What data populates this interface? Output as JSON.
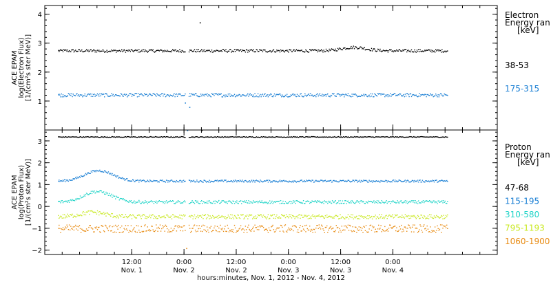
{
  "chart_data": [
    {
      "type": "scatter",
      "panel": "electron",
      "ylabel_lines": [
        "ACE EPAM",
        "log(Electron Flux)",
        "[1/(cm²s ster MeV)]"
      ],
      "ylim": [
        0,
        4.3
      ],
      "yticks": [
        1,
        2,
        3,
        4
      ],
      "legend_title_lines": [
        "Electron",
        "Energy ran",
        "[keV]"
      ],
      "series": [
        {
          "name": "38-53",
          "color": "#000000",
          "base": 2.75,
          "bumps": [
            {
              "x": 51,
              "h": 0.12
            }
          ],
          "spread": 0.05
        },
        {
          "name": "175-315",
          "color": "#1a7fd4",
          "base": 1.22,
          "bumps": [],
          "spread": 0.06
        }
      ],
      "outliers": [
        {
          "series": 0,
          "x": 15.6,
          "y": 3.72
        },
        {
          "series": 1,
          "x": 12.2,
          "y": 0.95
        },
        {
          "series": 1,
          "x": 12.7,
          "y": 0.0
        },
        {
          "series": 1,
          "x": 13.2,
          "y": 0.8
        }
      ]
    },
    {
      "type": "scatter",
      "panel": "proton",
      "ylabel_lines": [
        "ACE EPAM",
        "log(Proton Flux)",
        "[1/(cm²s ster MeV)]"
      ],
      "ylim": [
        -2.2,
        3.5
      ],
      "yticks": [
        -2,
        -1,
        0,
        1,
        2,
        3
      ],
      "legend_title_lines": [
        "Proton",
        "Energy ran",
        "[keV]"
      ],
      "series": [
        {
          "name": "47-68",
          "color": "#000000",
          "base": 3.2,
          "bumps": [],
          "spread": 0.02
        },
        {
          "name": "115-195",
          "color": "#1a7fd4",
          "base": 1.18,
          "bumps": [
            {
              "x": -9,
              "h": 0.3
            },
            {
              "x": -6,
              "h": 0.25
            }
          ],
          "spread": 0.05
        },
        {
          "name": "310-580",
          "color": "#22d4c8",
          "base": 0.22,
          "bumps": [
            {
              "x": -9,
              "h": 0.35
            },
            {
              "x": -6,
              "h": 0.2
            }
          ],
          "spread": 0.07
        },
        {
          "name": "795-1193",
          "color": "#c8e81e",
          "base": -0.45,
          "bumps": [
            {
              "x": -9,
              "h": 0.2
            }
          ],
          "spread": 0.1
        },
        {
          "name": "1060-1900",
          "color": "#e88a10",
          "base": -1.0,
          "bumps": [],
          "spread": 0.18
        }
      ],
      "outliers": [
        {
          "series": 0,
          "x": 16.0,
          "y": 3.5
        },
        {
          "series": 4,
          "x": 12.5,
          "y": -1.9
        }
      ]
    }
  ],
  "x_axis": {
    "range_hours": [
      -20,
      84
    ],
    "data_hours": [
      -17,
      72.5
    ],
    "gap_hours": [
      12.3,
      12.9
    ],
    "ticks": [
      {
        "hour": 0,
        "label": "12:00",
        "sub": "Nov. 1"
      },
      {
        "hour": 12,
        "label": "0:00",
        "sub": "Nov. 2"
      },
      {
        "hour": 24,
        "label": "12:00",
        "sub": "Nov. 2"
      },
      {
        "hour": 36,
        "label": "0:00",
        "sub": "Nov. 3"
      },
      {
        "hour": 48,
        "label": "12:00",
        "sub": "Nov. 3"
      },
      {
        "hour": 60,
        "label": "0:00",
        "sub": "Nov. 4"
      }
    ],
    "xlabel": "hours:minutes, Nov.  1, 2012 - Nov.  4, 2012"
  }
}
